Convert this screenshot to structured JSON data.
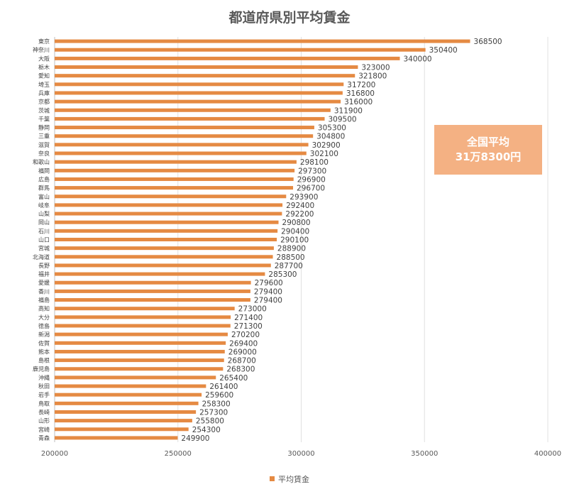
{
  "chart_data": {
    "type": "bar",
    "orientation": "horizontal",
    "title": "都道府県別平均賃金",
    "categories": [
      "東京",
      "神奈川",
      "大阪",
      "栃木",
      "愛知",
      "埼玉",
      "兵庫",
      "京都",
      "茨城",
      "千葉",
      "静岡",
      "三重",
      "滋賀",
      "奈良",
      "和歌山",
      "福岡",
      "広島",
      "群馬",
      "富山",
      "岐阜",
      "山梨",
      "岡山",
      "石川",
      "山口",
      "宮城",
      "北海道",
      "長野",
      "福井",
      "愛媛",
      "香川",
      "福島",
      "高知",
      "大分",
      "徳島",
      "新潟",
      "佐賀",
      "熊本",
      "島根",
      "鹿児島",
      "沖縄",
      "秋田",
      "岩手",
      "鳥取",
      "長崎",
      "山形",
      "宮崎",
      "青森"
    ],
    "series": [
      {
        "name": "平均賃金",
        "values": [
          368500,
          350400,
          340000,
          323000,
          321800,
          317200,
          316800,
          316000,
          311900,
          309500,
          305300,
          304800,
          302900,
          302100,
          298100,
          297300,
          296900,
          296700,
          293900,
          292400,
          292200,
          290800,
          290400,
          290100,
          288900,
          288500,
          287700,
          285300,
          279600,
          279400,
          279400,
          273000,
          271400,
          271300,
          270200,
          269400,
          269000,
          268700,
          268300,
          265400,
          261400,
          259600,
          258300,
          257300,
          255800,
          254300,
          249900
        ]
      }
    ],
    "xlim": [
      200000,
      400000
    ],
    "xticks": [
      200000,
      250000,
      300000,
      350000,
      400000
    ],
    "data_labels": true,
    "grid": "vertical",
    "legend_position": "bottom",
    "colors": {
      "bar": "#e58a43",
      "grid": "#e0e0e0",
      "text": "#404040",
      "axis_label": "#595959"
    }
  },
  "annotation": {
    "line1": "全国平均",
    "line2": "31万8300円",
    "background": "#f4b183"
  },
  "legend": {
    "label": "平均賃金"
  }
}
